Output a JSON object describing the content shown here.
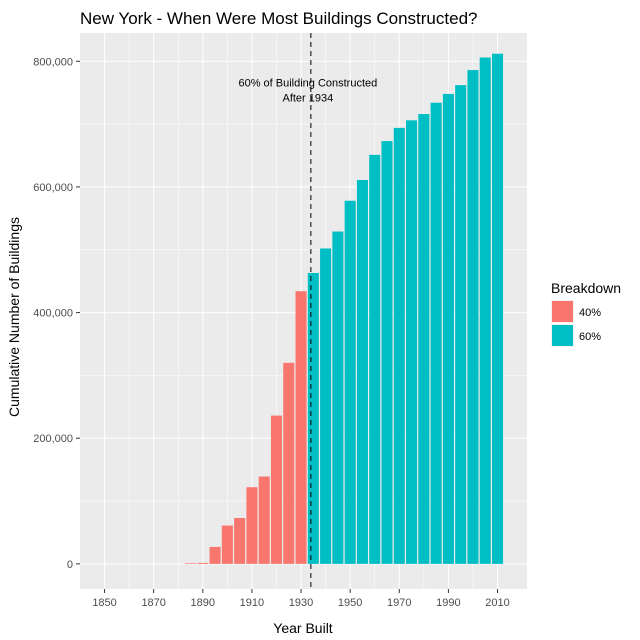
{
  "chart_data": {
    "type": "bar",
    "title": "New York - When Were Most Buildings Constructed?",
    "xlabel": "Year Built",
    "ylabel": "Cumulative Number of Buildings",
    "x_ticks": [
      1850,
      1870,
      1890,
      1910,
      1930,
      1950,
      1970,
      1990,
      2010
    ],
    "y_ticks": [
      0,
      200000,
      400000,
      600000,
      800000
    ],
    "y_tick_labels": [
      "0",
      "200,000",
      "400,000",
      "600,000",
      "800,000"
    ],
    "xlim": [
      1840,
      2022
    ],
    "ylim": [
      -40000,
      845000
    ],
    "bar_width_years": 4.5,
    "bars": [
      {
        "year": 1885,
        "value": 1000,
        "group": "40%"
      },
      {
        "year": 1890,
        "value": 1500,
        "group": "40%"
      },
      {
        "year": 1895,
        "value": 27000,
        "group": "40%"
      },
      {
        "year": 1900,
        "value": 61000,
        "group": "40%"
      },
      {
        "year": 1905,
        "value": 73000,
        "group": "40%"
      },
      {
        "year": 1910,
        "value": 122000,
        "group": "40%"
      },
      {
        "year": 1915,
        "value": 139000,
        "group": "40%"
      },
      {
        "year": 1920,
        "value": 236000,
        "group": "40%"
      },
      {
        "year": 1925,
        "value": 320000,
        "group": "40%"
      },
      {
        "year": 1930,
        "value": 434000,
        "group": "40%"
      },
      {
        "year": 1935,
        "value": 463000,
        "group": "60%"
      },
      {
        "year": 1940,
        "value": 502000,
        "group": "60%"
      },
      {
        "year": 1945,
        "value": 529000,
        "group": "60%"
      },
      {
        "year": 1950,
        "value": 578000,
        "group": "60%"
      },
      {
        "year": 1955,
        "value": 611000,
        "group": "60%"
      },
      {
        "year": 1960,
        "value": 651000,
        "group": "60%"
      },
      {
        "year": 1965,
        "value": 673000,
        "group": "60%"
      },
      {
        "year": 1970,
        "value": 694000,
        "group": "60%"
      },
      {
        "year": 1975,
        "value": 706000,
        "group": "60%"
      },
      {
        "year": 1980,
        "value": 716000,
        "group": "60%"
      },
      {
        "year": 1985,
        "value": 734000,
        "group": "60%"
      },
      {
        "year": 1990,
        "value": 748000,
        "group": "60%"
      },
      {
        "year": 1995,
        "value": 762000,
        "group": "60%"
      },
      {
        "year": 2000,
        "value": 786000,
        "group": "60%"
      },
      {
        "year": 2005,
        "value": 806000,
        "group": "60%"
      },
      {
        "year": 2010,
        "value": 812000,
        "group": "60%"
      }
    ],
    "vline": {
      "x": 1934,
      "style": "dashed"
    },
    "annotation": {
      "lines": [
        "60% of Building Constructed",
        "After 1934"
      ],
      "x": 1934,
      "y": 752000
    },
    "legend": {
      "title": "Breakdown",
      "placement": "right",
      "items": [
        {
          "label": "40%",
          "color": "#F8766D"
        },
        {
          "label": "60%",
          "color": "#00BFC4"
        }
      ]
    },
    "colors": {
      "panel_bg": "#EBEBEB",
      "grid_major": "#FFFFFF",
      "group_40": "#F8766D",
      "group_60": "#00BFC4"
    },
    "grid": true
  }
}
